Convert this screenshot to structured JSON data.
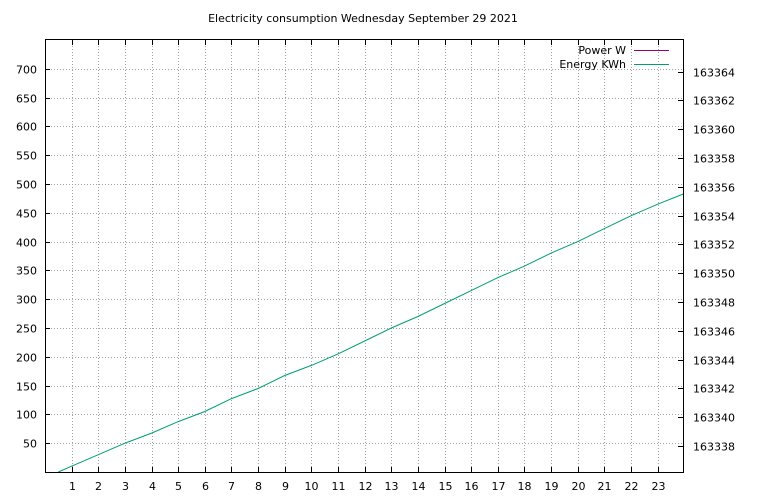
{
  "chart_data": {
    "type": "line",
    "title": "Electricity consumption Wednesday September 29 2021",
    "x_ticks": [
      "1",
      "2",
      "3",
      "4",
      "5",
      "6",
      "7",
      "8",
      "9",
      "10",
      "11",
      "12",
      "13",
      "14",
      "15",
      "16",
      "17",
      "18",
      "19",
      "20",
      "21",
      "22",
      "23"
    ],
    "xlim": [
      0.0,
      23.95
    ],
    "y_left_ticks": [
      50,
      100,
      150,
      200,
      250,
      300,
      350,
      400,
      450,
      500,
      550,
      600,
      650,
      700
    ],
    "ylim_left": [
      0,
      750
    ],
    "y_right_ticks": [
      163338,
      163340,
      163342,
      163344,
      163346,
      163348,
      163350,
      163352,
      163354,
      163356,
      163358,
      163360,
      163362,
      163364
    ],
    "ylim_right": [
      163336.2,
      163366.2
    ],
    "grid": true,
    "legend_position": "top-right",
    "series": [
      {
        "name": "Power W",
        "color": "#94007a",
        "axis": "left",
        "x": [],
        "y": []
      },
      {
        "name": "Energy KWh",
        "color": "#009e73",
        "axis": "right",
        "x": [
          0.5,
          1.0,
          2.0,
          3.0,
          4.0,
          5.0,
          6.0,
          7.0,
          8.0,
          9.0,
          10.0,
          11.0,
          12.0,
          13.0,
          14.0,
          15.0,
          16.0,
          17.0,
          18.0,
          19.0,
          20.0,
          21.0,
          22.0,
          23.0,
          23.95
        ],
        "y": [
          163336.2,
          163336.6,
          163337.4,
          163338.2,
          163338.9,
          163339.7,
          163340.4,
          163341.3,
          163342.0,
          163342.9,
          163343.6,
          163344.4,
          163345.3,
          163346.2,
          163347.0,
          163347.9,
          163348.8,
          163349.7,
          163350.5,
          163351.4,
          163352.2,
          163353.1,
          163354.0,
          163354.8,
          163355.5
        ]
      }
    ]
  }
}
